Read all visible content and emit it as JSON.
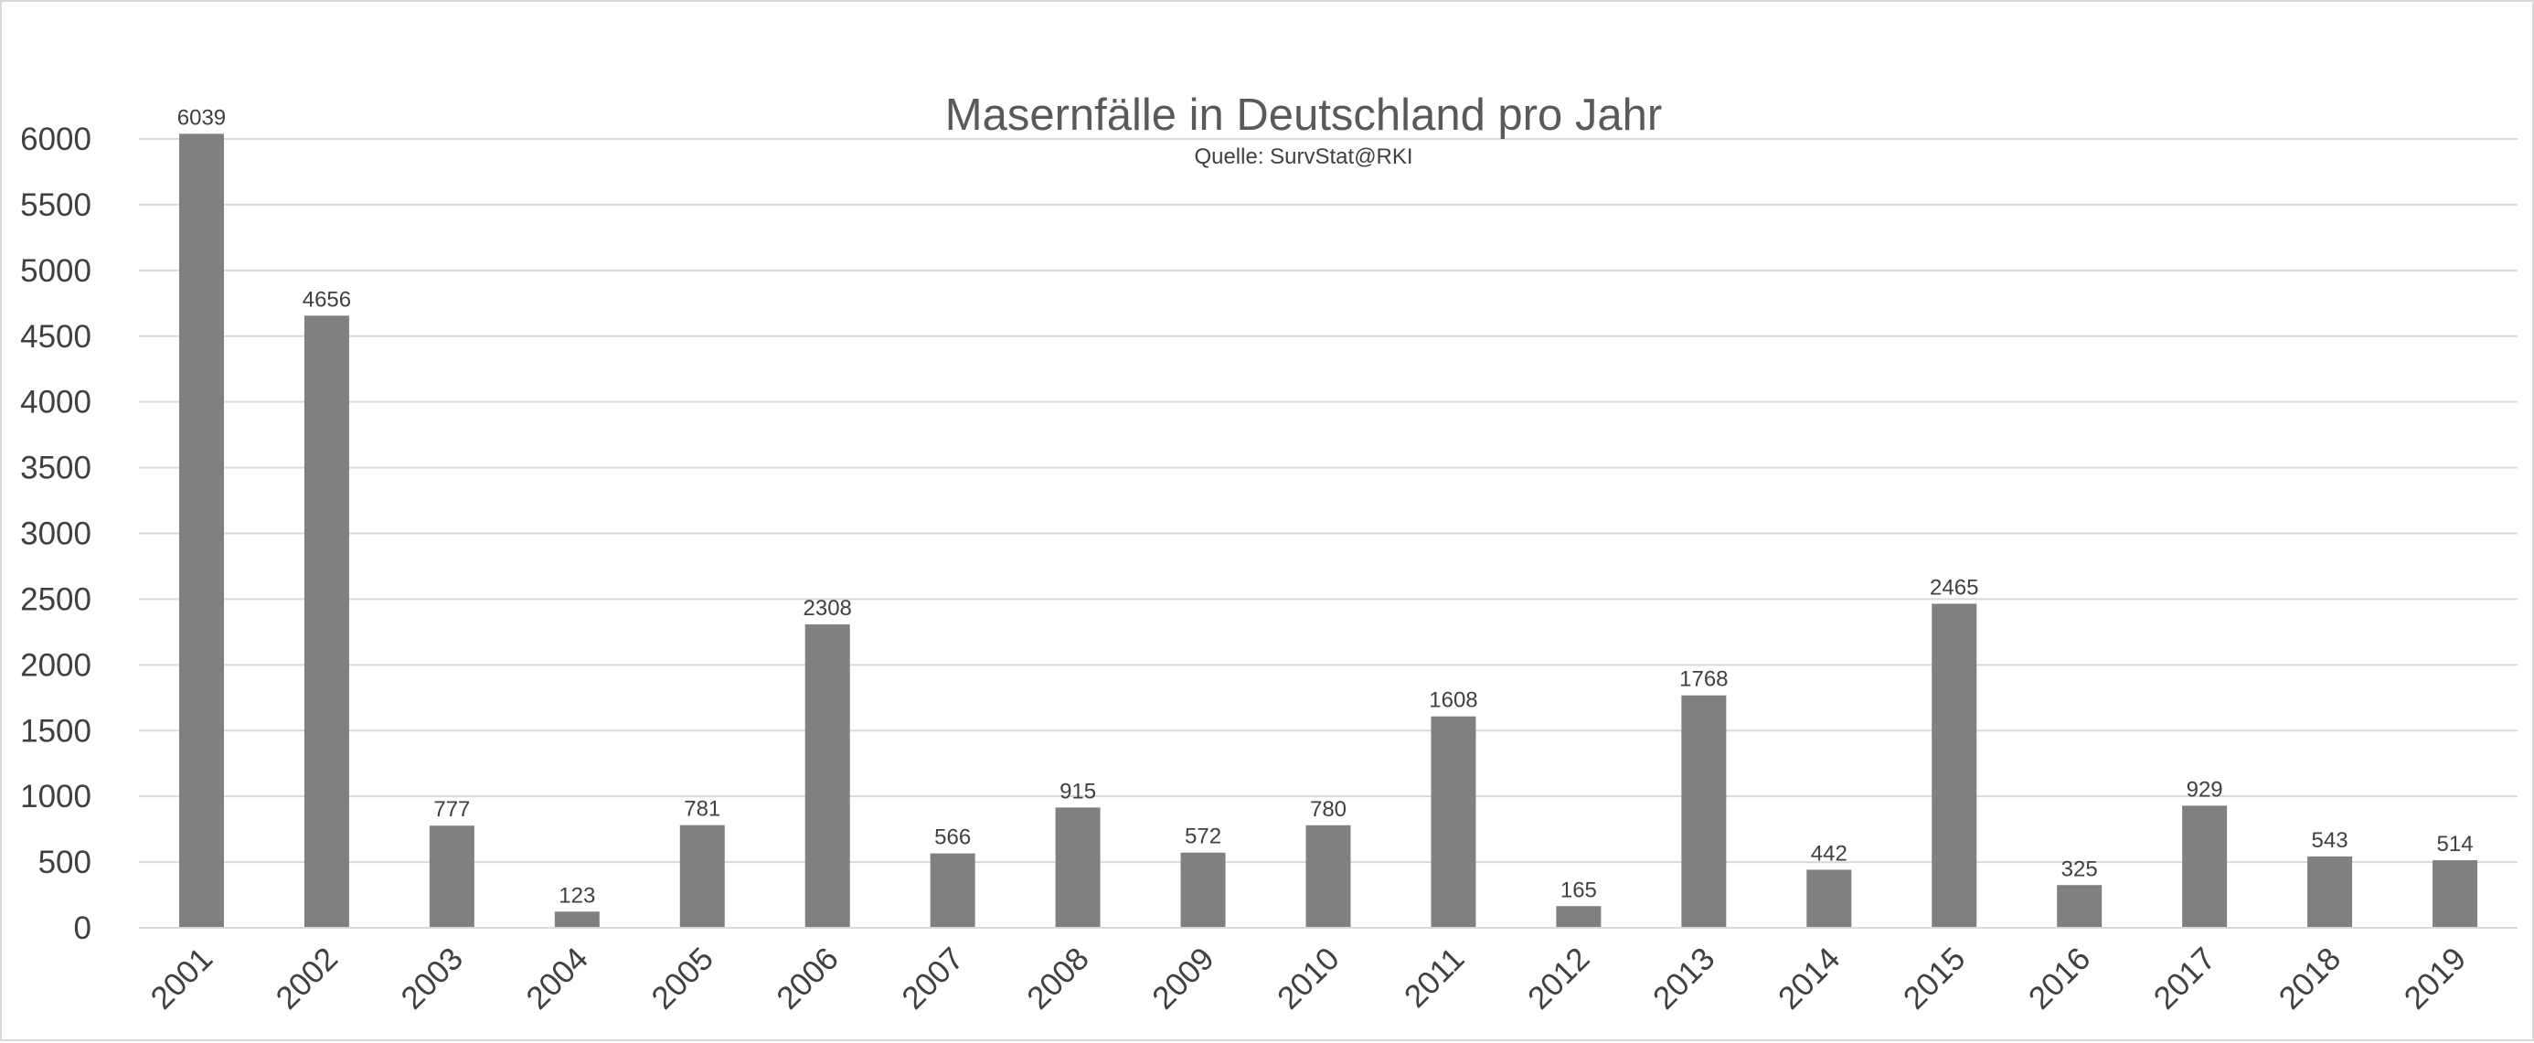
{
  "chart_data": {
    "type": "bar",
    "title": "Masernfälle in Deutschland pro Jahr",
    "subtitle": "Quelle: SurvStat@RKI",
    "xlabel": "",
    "ylabel": "",
    "categories": [
      "2001",
      "2002",
      "2003",
      "2004",
      "2005",
      "2006",
      "2007",
      "2008",
      "2009",
      "2010",
      "2011",
      "2012",
      "2013",
      "2014",
      "2015",
      "2016",
      "2017",
      "2018",
      "2019"
    ],
    "values": [
      6039,
      4656,
      777,
      123,
      781,
      2308,
      566,
      915,
      572,
      780,
      1608,
      165,
      1768,
      442,
      2465,
      325,
      929,
      543,
      514
    ],
    "data_labels": [
      "6039",
      "4656",
      "777",
      "123",
      "781",
      "2308",
      "566",
      "915",
      "572",
      "780",
      "1608",
      "165",
      "1768",
      "442",
      "2465",
      "325",
      "929",
      "543",
      "514"
    ],
    "ylim": [
      0,
      6000
    ],
    "yticks": [
      0,
      500,
      1000,
      1500,
      2000,
      2500,
      3000,
      3500,
      4000,
      4500,
      5000,
      5500,
      6000
    ],
    "ytick_labels": [
      "0",
      "500",
      "1000",
      "1500",
      "2000",
      "2500",
      "3000",
      "3500",
      "4000",
      "4500",
      "5000",
      "5500",
      "6000"
    ],
    "grid": true,
    "legend": "none",
    "bar_color": "#808080",
    "grid_color": "#d9d9d9",
    "text_color": "#404040",
    "title_color": "#595959"
  }
}
